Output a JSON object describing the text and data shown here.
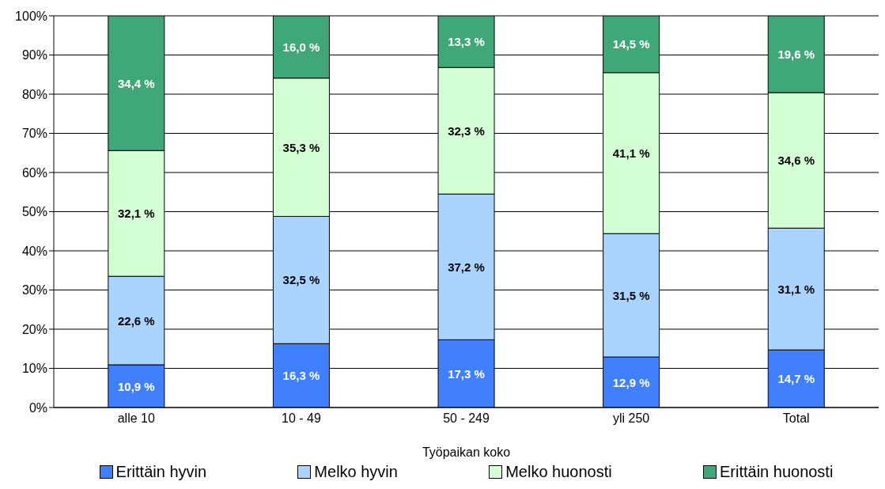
{
  "chart_data": {
    "type": "bar",
    "stacked": true,
    "xlabel": "Työpaikan koko",
    "categories": [
      "alle 10",
      "10 - 49",
      "50 - 249",
      "yli 250",
      "Total"
    ],
    "series": [
      {
        "name": "Erittäin hyvin",
        "color": "#4080ff",
        "values": [
          10.9,
          16.3,
          17.3,
          12.9,
          14.7
        ],
        "value_labels": [
          "10,9 %",
          "16,3 %",
          "17,3 %",
          "12,9 %",
          "14,7 %"
        ]
      },
      {
        "name": "Melko hyvin",
        "color": "#a8d4ff",
        "values": [
          22.6,
          32.5,
          37.2,
          31.5,
          31.1
        ],
        "value_labels": [
          "22,6 %",
          "32,5 %",
          "37,2 %",
          "31,5 %",
          "31,1 %"
        ]
      },
      {
        "name": "Melko huonosti",
        "color": "#d4ffd4",
        "values": [
          32.1,
          35.3,
          32.3,
          41.1,
          34.6
        ],
        "value_labels": [
          "32,1 %",
          "35,3 %",
          "32,3 %",
          "41,1 %",
          "34,6 %"
        ]
      },
      {
        "name": "Erittäin huonosti",
        "color": "#40a878",
        "values": [
          34.4,
          16.0,
          13.3,
          14.5,
          19.6
        ],
        "value_labels": [
          "34,4 %",
          "16,0 %",
          "13,3 %",
          "14,5 %",
          "19,6 %"
        ]
      }
    ],
    "ylim": [
      0,
      100
    ],
    "yticks": [
      {
        "value": 0,
        "label": "0%"
      },
      {
        "value": 10,
        "label": "10%"
      },
      {
        "value": 20,
        "label": "20%"
      },
      {
        "value": 30,
        "label": "30%"
      },
      {
        "value": 40,
        "label": "40%"
      },
      {
        "value": 50,
        "label": "50%"
      },
      {
        "value": 60,
        "label": "60%"
      },
      {
        "value": 70,
        "label": "70%"
      },
      {
        "value": 80,
        "label": "80%"
      },
      {
        "value": 90,
        "label": "90%"
      },
      {
        "value": 100,
        "label": "100%"
      }
    ],
    "grid": "y",
    "legend": "bottom"
  }
}
